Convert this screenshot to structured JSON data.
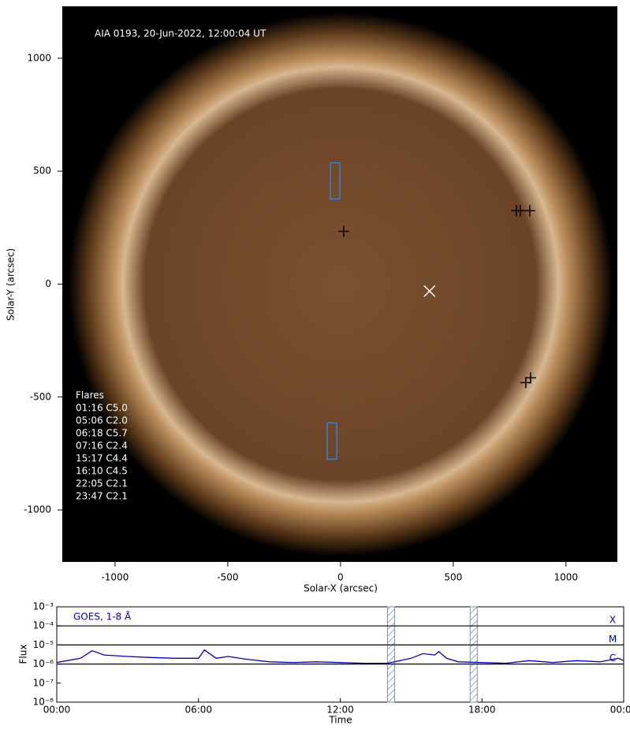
{
  "chart_data": [
    {
      "type": "image-scatter",
      "title": "AIA 0193, 20-Jun-2022, 12:00:04 UT",
      "x_label": "Solar-X (arcsec)",
      "y_label": "Solar-Y (arcsec)",
      "xlim": [
        -1234,
        1228
      ],
      "ylim": [
        -1230,
        1230
      ],
      "xticks": [
        -1000,
        -500,
        0,
        500,
        1000
      ],
      "yticks": [
        -1000,
        -500,
        0,
        500,
        1000
      ],
      "series": [
        {
          "color": "#000000",
          "marker": "+",
          "x": [
            14,
            780,
            797,
            839,
            822,
            843
          ],
          "y": [
            234,
            325,
            325,
            325,
            -436,
            -415
          ]
        },
        {
          "color": "#ffffff",
          "marker": "x",
          "x": [
            395
          ],
          "y": [
            -31
          ]
        }
      ],
      "boxes": [
        {
          "color": "#3a7fd5",
          "x": [
            -45,
            -3
          ],
          "y": [
            377,
            537
          ]
        },
        {
          "color": "#3a7fd5",
          "x": [
            -59,
            -17
          ],
          "y": [
            -775,
            -614
          ]
        }
      ],
      "flares": {
        "title": "Flares",
        "items": [
          "01:16 C5.0",
          "05:06 C2.0",
          "06:18 C5.7",
          "07:16 C2.4",
          "15:17 C4.4",
          "16:10 C4.5",
          "22:05 C2.1",
          "23:47 C2.1"
        ]
      }
    },
    {
      "type": "line",
      "annotation": "GOES, 1-8 Å",
      "x_label": "Time",
      "y_label": "Flux",
      "xlim": [
        0,
        24
      ],
      "ylim": [
        1e-08,
        0.001
      ],
      "log_y": true,
      "xticks": [
        {
          "value": 0,
          "label": "00:00"
        },
        {
          "value": 6,
          "label": "06:00"
        },
        {
          "value": 12,
          "label": "12:00"
        },
        {
          "value": 18,
          "label": "18:00"
        },
        {
          "value": 24,
          "label": "00:00"
        }
      ],
      "yticks": [
        {
          "value": 1e-08,
          "label": "10⁻⁸"
        },
        {
          "value": 1e-07,
          "label": "10⁻⁷"
        },
        {
          "value": 1e-06,
          "label": "10⁻⁶"
        },
        {
          "value": 1e-05,
          "label": "10⁻⁵"
        },
        {
          "value": 0.0001,
          "label": "10⁻⁴"
        },
        {
          "value": 0.001,
          "label": "10⁻³"
        }
      ],
      "levels": [
        {
          "value": 0.0001,
          "label": "X"
        },
        {
          "value": 1e-05,
          "label": "M"
        },
        {
          "value": 1e-06,
          "label": "C"
        }
      ],
      "bands": [
        [
          14.0,
          14.3
        ],
        [
          17.5,
          17.8
        ]
      ],
      "series": [
        {
          "color": "#0000cc",
          "x": [
            0,
            1,
            1.5,
            2,
            3,
            4,
            5,
            6,
            6.25,
            6.75,
            7.25,
            8,
            9,
            10,
            11,
            12,
            13,
            14,
            15,
            15.5,
            16,
            16.17,
            16.5,
            17,
            18,
            19,
            20,
            21,
            22,
            23,
            23.78,
            24
          ],
          "values": [
            1.2e-06,
            2e-06,
            5e-06,
            3e-06,
            2.5e-06,
            2.2e-06,
            2e-06,
            2e-06,
            5.5e-06,
            2e-06,
            2.5e-06,
            1.8e-06,
            1.3e-06,
            1.2e-06,
            1.3e-06,
            1.2e-06,
            1.1e-06,
            1.1e-06,
            2e-06,
            3.5e-06,
            3e-06,
            4.5e-06,
            2e-06,
            1.3e-06,
            1.2e-06,
            1.1e-06,
            1.5e-06,
            1.2e-06,
            1.5e-06,
            1.3e-06,
            2e-06,
            1.5e-06
          ]
        }
      ]
    }
  ]
}
